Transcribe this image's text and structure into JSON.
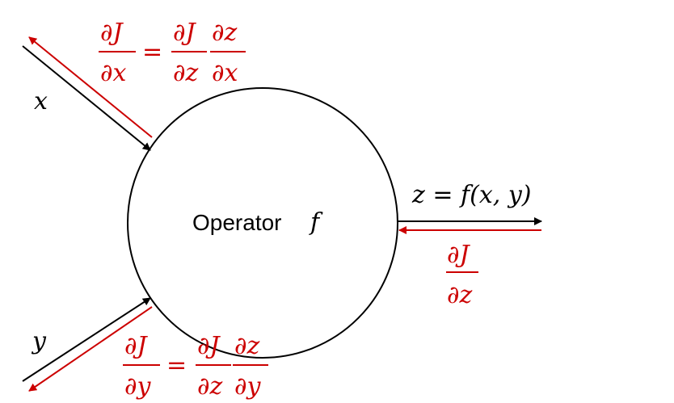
{
  "colors": {
    "forward": "#000000",
    "gradient": "#cc0000"
  },
  "operator": {
    "label": "Operator",
    "symbol": "f"
  },
  "inputs": {
    "x": "x",
    "y": "y"
  },
  "output": {
    "formula": "z = f(x, y)"
  },
  "gradients": {
    "dx": {
      "lhs_num": "∂J",
      "lhs_den": "∂x",
      "eq": "=",
      "r1_num": "∂J",
      "r1_den": "∂z",
      "r2_num": "∂z",
      "r2_den": "∂x"
    },
    "dy": {
      "lhs_num": "∂J",
      "lhs_den": "∂y",
      "eq": "=",
      "r1_num": "∂J",
      "r1_den": "∂z",
      "r2_num": "∂z",
      "r2_den": "∂y"
    },
    "dz": {
      "num": "∂J",
      "den": "∂z"
    }
  }
}
